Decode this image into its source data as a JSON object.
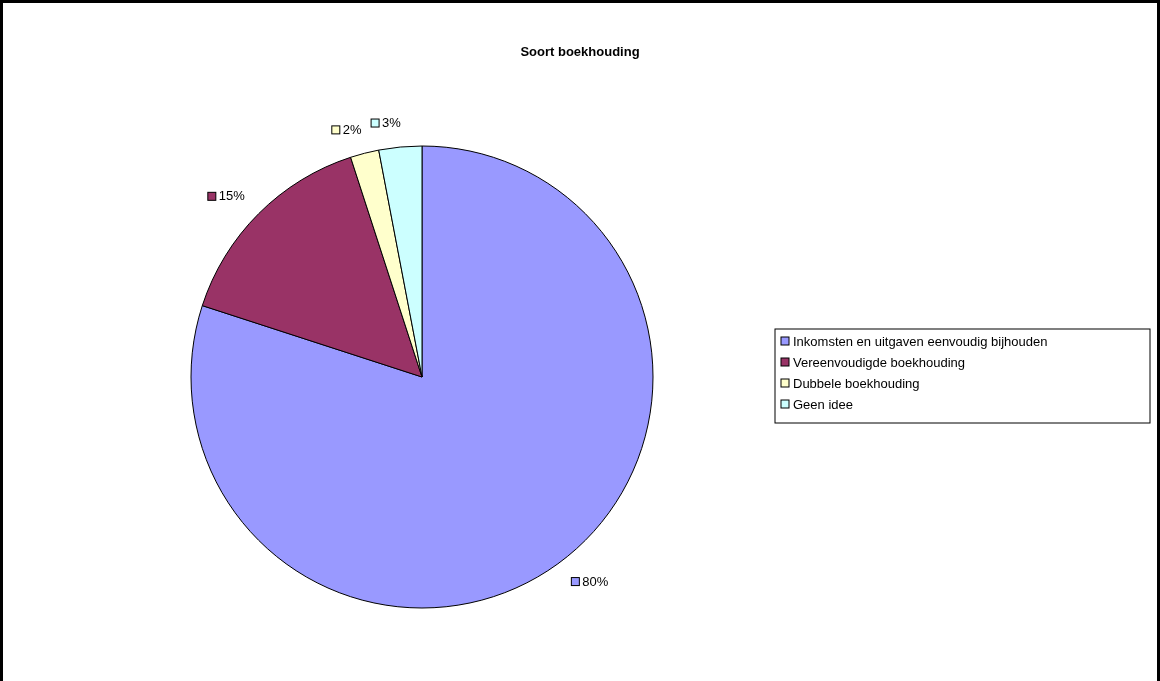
{
  "chart_data": {
    "type": "pie",
    "title": "Soort boekhouding",
    "categories": [
      "Inkomsten en uitgaven eenvoudig bijhouden",
      "Vereenvoudigde boekhouding",
      "Dubbele boekhouding",
      "Geen idee"
    ],
    "values": [
      80,
      15,
      2,
      3
    ],
    "colors": [
      "#9999ff",
      "#993366",
      "#ffffcc",
      "#ccffff"
    ],
    "value_labels": [
      "80%",
      "15%",
      "2%",
      "3%"
    ],
    "legend": "right"
  }
}
